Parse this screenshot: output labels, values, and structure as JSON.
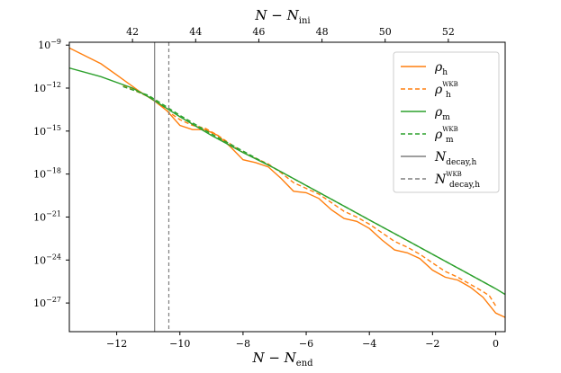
{
  "chart_data": {
    "type": "line",
    "xlabel": "N − N",
    "xlabel_sub": "end",
    "x2label": "N − N",
    "x2label_sub": "ini",
    "xlim": [
      -13.5,
      0.3
    ],
    "x2_offset": 53.5,
    "ylim_log10": [
      -29,
      -8.8
    ],
    "y_scale": "log",
    "xticks": [
      -12,
      -10,
      -8,
      -6,
      -4,
      -2,
      0
    ],
    "x2ticks": [
      42,
      44,
      46,
      48,
      50,
      52
    ],
    "yticks_exp": [
      -9,
      -12,
      -15,
      -18,
      -21,
      -24,
      -27
    ],
    "ytick_base": "10",
    "legend_position": "top-right",
    "colors": {
      "orange": "#ff7f0e",
      "green": "#2ca02c",
      "gray": "#7f7f7f"
    },
    "series": [
      {
        "name": "ρ",
        "sub": "h",
        "sup": "",
        "color": "#ff7f0e",
        "dash": "solid",
        "x": [
          -13.5,
          -12.5,
          -11.8,
          -11.3,
          -10.8,
          -10.4,
          -10.0,
          -9.6,
          -9.2,
          -8.8,
          -8.4,
          -8.0,
          -7.6,
          -7.2,
          -6.8,
          -6.4,
          -6.0,
          -5.6,
          -5.2,
          -4.8,
          -4.4,
          -4.0,
          -3.6,
          -3.2,
          -2.8,
          -2.4,
          -2.0,
          -1.6,
          -1.2,
          -0.8,
          -0.4,
          0.0,
          0.3
        ],
        "log10_y": [
          -9.2,
          -10.3,
          -11.4,
          -12.2,
          -12.9,
          -13.6,
          -14.6,
          -14.9,
          -14.9,
          -15.3,
          -16.1,
          -17.0,
          -17.2,
          -17.5,
          -18.3,
          -19.2,
          -19.3,
          -19.7,
          -20.5,
          -21.1,
          -21.3,
          -21.8,
          -22.6,
          -23.3,
          -23.5,
          -23.9,
          -24.7,
          -25.2,
          -25.4,
          -25.9,
          -26.6,
          -27.7,
          -28.0
        ]
      },
      {
        "name": "ρ",
        "sub": "h",
        "sup": "WKB",
        "color": "#ff7f0e",
        "dash": "dashed",
        "x": [
          -11.8,
          -11.3,
          -10.8,
          -10.4,
          -10.0,
          -9.6,
          -9.2,
          -8.8,
          -8.4,
          -8.0,
          -7.6,
          -7.2,
          -6.8,
          -6.4,
          -6.0,
          -5.6,
          -5.2,
          -4.8,
          -4.4,
          -4.0,
          -3.6,
          -3.2,
          -2.8,
          -2.4,
          -2.0,
          -1.6,
          -1.2,
          -0.8,
          -0.4,
          -0.2,
          0.0
        ],
        "log10_y": [
          -11.8,
          -12.3,
          -12.8,
          -13.6,
          -14.2,
          -14.6,
          -14.8,
          -15.3,
          -15.9,
          -16.5,
          -16.9,
          -17.3,
          -17.9,
          -18.6,
          -19.0,
          -19.4,
          -20.0,
          -20.6,
          -21.0,
          -21.5,
          -22.1,
          -22.7,
          -23.1,
          -23.6,
          -24.2,
          -24.8,
          -25.2,
          -25.7,
          -26.2,
          -26.5,
          -27.2
        ]
      },
      {
        "name": "ρ",
        "sub": "m",
        "sup": "",
        "color": "#2ca02c",
        "dash": "solid",
        "x": [
          -13.5,
          -12.5,
          -11.5,
          -11.0,
          -10.5,
          -10.0,
          -9.0,
          -8.0,
          -7.0,
          -6.0,
          -5.0,
          -4.0,
          -3.0,
          -2.0,
          -1.0,
          0.0,
          0.3
        ],
        "log10_y": [
          -10.6,
          -11.2,
          -12.0,
          -12.6,
          -13.3,
          -14.0,
          -15.3,
          -16.5,
          -17.6,
          -18.8,
          -20.0,
          -21.2,
          -22.4,
          -23.6,
          -24.8,
          -26.0,
          -26.4
        ]
      },
      {
        "name": "ρ",
        "sub": "m",
        "sup": "WKB",
        "color": "#2ca02c",
        "dash": "dashed",
        "x": [
          -11.8,
          -11.0,
          -10.5,
          -10.0,
          -9.0,
          -8.0,
          -7.0,
          -6.0,
          -5.0,
          -4.0,
          -3.0,
          -2.0,
          -1.0,
          0.0
        ],
        "log10_y": [
          -11.9,
          -12.5,
          -13.2,
          -13.9,
          -15.2,
          -16.4,
          -17.6,
          -18.8,
          -20.0,
          -21.2,
          -22.4,
          -23.6,
          -24.8,
          -26.0
        ]
      }
    ],
    "vlines": [
      {
        "name": "N",
        "sub": "decay,h",
        "sup": "",
        "x": -10.8,
        "color": "#7f7f7f",
        "dash": "solid"
      },
      {
        "name": "N",
        "sub": "decay,h",
        "sup": "WKB",
        "x": -10.35,
        "color": "#7f7f7f",
        "dash": "dashed"
      }
    ]
  }
}
